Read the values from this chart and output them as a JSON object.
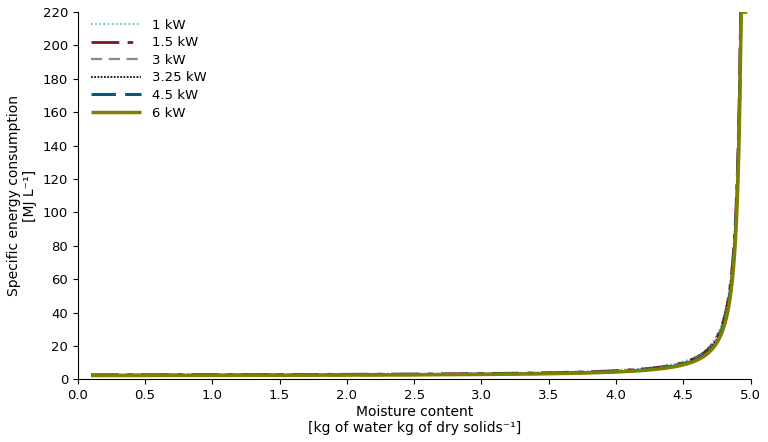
{
  "ylabel_line1": "Specific energy consumption",
  "ylabel_line2": "[MJ L⁻¹]",
  "xlabel_line1": "Moisture content",
  "xlabel_line2": "[kg of water kg of dry solids⁻¹]",
  "xlim": [
    0.0,
    5.0
  ],
  "ylim": [
    0,
    220
  ],
  "yticks": [
    0,
    20,
    40,
    60,
    80,
    100,
    120,
    140,
    160,
    180,
    200,
    220
  ],
  "xticks": [
    0.0,
    0.5,
    1.0,
    1.5,
    2.0,
    2.5,
    3.0,
    3.5,
    4.0,
    4.5,
    5.0
  ],
  "mc_max": 4.975,
  "mc_start": 0.1,
  "series": [
    {
      "label": "1 kW",
      "color": "#2EC4C4",
      "lw": 1.2,
      "ls_key": "dotted_fine",
      "power_kw": 1.0,
      "A": 0.012,
      "B": 2.5,
      "base": 2.8
    },
    {
      "label": "1.5 kW",
      "color": "#7B1A1A",
      "lw": 2.0,
      "ls_key": "dashdot_long",
      "power_kw": 1.5,
      "A": 0.011,
      "B": 2.4,
      "base": 2.5
    },
    {
      "label": "3 kW",
      "color": "#888888",
      "lw": 1.6,
      "ls_key": "dashed_medium",
      "power_kw": 3.0,
      "A": 0.01,
      "B": 2.35,
      "base": 2.35
    },
    {
      "label": "3.25 kW",
      "color": "#111111",
      "lw": 1.3,
      "ls_key": "very_dense",
      "power_kw": 3.25,
      "A": 0.0098,
      "B": 2.3,
      "base": 2.3
    },
    {
      "label": "4.5 kW",
      "color": "#005B7F",
      "lw": 2.2,
      "ls_key": "dashed_long",
      "power_kw": 4.5,
      "A": 0.009,
      "B": 2.2,
      "base": 2.2
    },
    {
      "label": "6 kW",
      "color": "#808000",
      "lw": 2.5,
      "ls_key": "solid",
      "power_kw": 6.0,
      "A": 0.0082,
      "B": 2.1,
      "base": 2.1
    }
  ]
}
